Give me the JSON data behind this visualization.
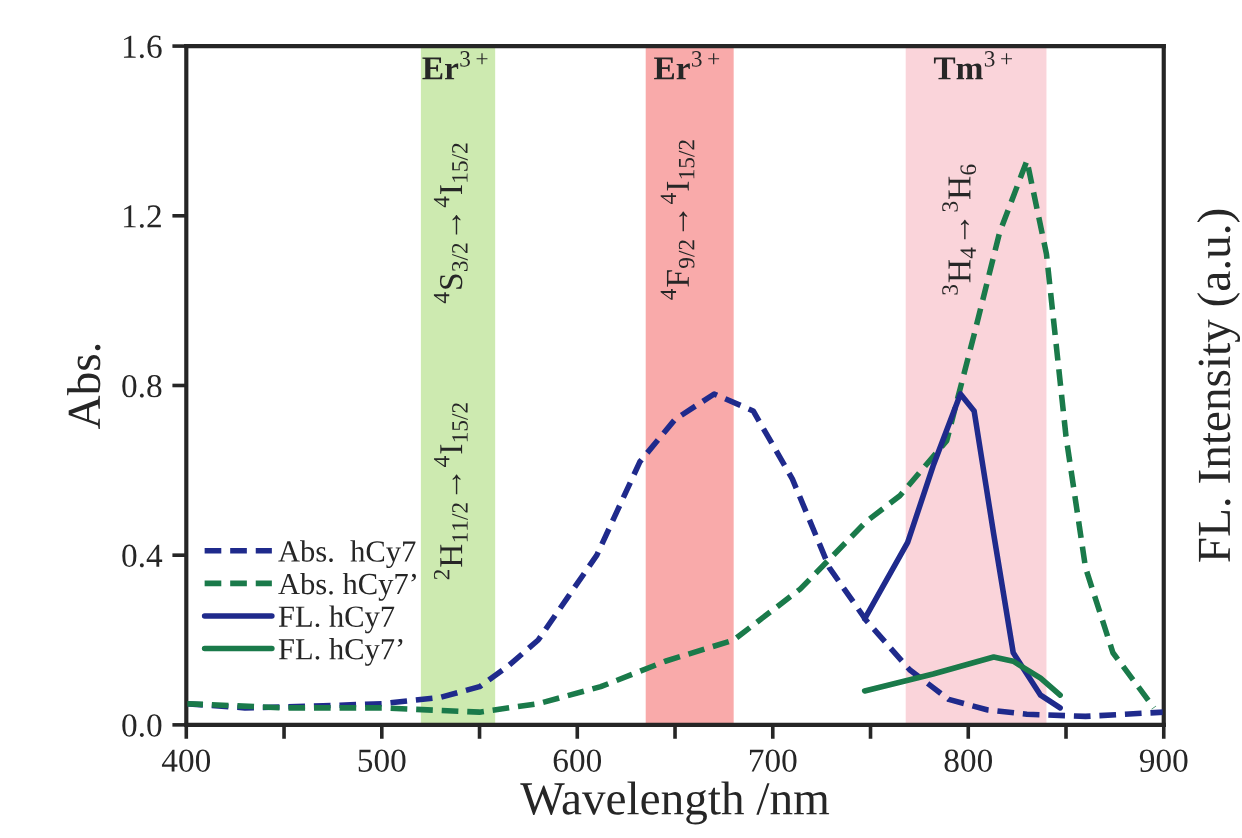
{
  "chart_data": {
    "type": "line",
    "xlabel": "Wavelength /nm",
    "ylabel": "Abs.",
    "y2label": "FL. Intensity (a.u.)",
    "xlim": [
      400,
      900
    ],
    "ylim": [
      0,
      1.6
    ],
    "xticks": [
      400,
      {
        "value": 450,
        "label": null
      },
      500,
      {
        "value": 550,
        "label": null
      },
      600,
      {
        "value": 650,
        "label": null
      },
      700,
      {
        "value": 750,
        "label": null
      },
      800,
      {
        "value": 850,
        "label": null
      },
      900
    ],
    "yticks": [
      {
        "value": 0,
        "label": "0.0"
      },
      0.4,
      0.8,
      1.2,
      1.6
    ],
    "legend": "bottom left",
    "grid": false,
    "series": [
      {
        "name": "Abs.  hCy7",
        "color": "#1f2a8c",
        "line_style": "dashed",
        "x": [
          400,
          430,
          470,
          500,
          530,
          550,
          565,
          580,
          595,
          610,
          632,
          650,
          670,
          690,
          710,
          729,
          748,
          770,
          790,
          810,
          830,
          860,
          900
        ],
        "values": [
          0.05,
          0.04,
          0.045,
          0.05,
          0.065,
          0.09,
          0.14,
          0.2,
          0.3,
          0.4,
          0.62,
          0.72,
          0.78,
          0.74,
          0.58,
          0.37,
          0.245,
          0.13,
          0.06,
          0.035,
          0.025,
          0.02,
          0.03
        ]
      },
      {
        "name": "Abs. hCy7’",
        "color": "#1a7a4a",
        "line_style": "dashed",
        "x": [
          400,
          450,
          500,
          550,
          580,
          612,
          645,
          680,
          714,
          748,
          765,
          789,
          803,
          816,
          830,
          840,
          850,
          860,
          874,
          895
        ],
        "values": [
          0.05,
          0.04,
          0.04,
          0.03,
          0.05,
          0.09,
          0.15,
          0.2,
          0.32,
          0.48,
          0.54,
          0.67,
          0.92,
          1.16,
          1.33,
          1.11,
          0.68,
          0.37,
          0.17,
          0.04
        ]
      },
      {
        "name": "FL. hCy7",
        "color": "#1f2a8c",
        "line_style": "solid",
        "x": [
          747,
          769,
          782,
          796,
          803,
          813,
          823,
          837,
          847
        ],
        "values": [
          0.25,
          0.43,
          0.61,
          0.78,
          0.74,
          0.45,
          0.17,
          0.07,
          0.04
        ]
      },
      {
        "name": "FL. hCy7’",
        "color": "#1a7a4a",
        "line_style": "solid",
        "x": [
          747,
          782,
          813,
          823,
          837,
          847
        ],
        "values": [
          0.08,
          0.12,
          0.16,
          0.15,
          0.11,
          0.07
        ]
      }
    ],
    "bands": [
      {
        "axis": "x",
        "from": 520,
        "to": 558,
        "label": "Er$^{3+}$",
        "color": "#cdeab0"
      },
      {
        "axis": "x",
        "from": 635,
        "to": 680,
        "label": "Er$^{3+}$",
        "color": "#f9aaaa"
      },
      {
        "axis": "x",
        "from": 768,
        "to": 840,
        "label": "Tm$^{3+}$",
        "color": "#fad4da"
      }
    ],
    "annotations": [
      "$^{2}$H$_{11/2}$→$^{4}$I$_{15/2}$",
      "$^{4}$S$_{3/2}$→$^{4}$I$_{15/2}$",
      "$^{4}$F$_{9/2}$→$^{4}$I$_{15/2}$",
      "$^{3}$H$_{4}$→$^{3}$H$_{6}$"
    ]
  }
}
